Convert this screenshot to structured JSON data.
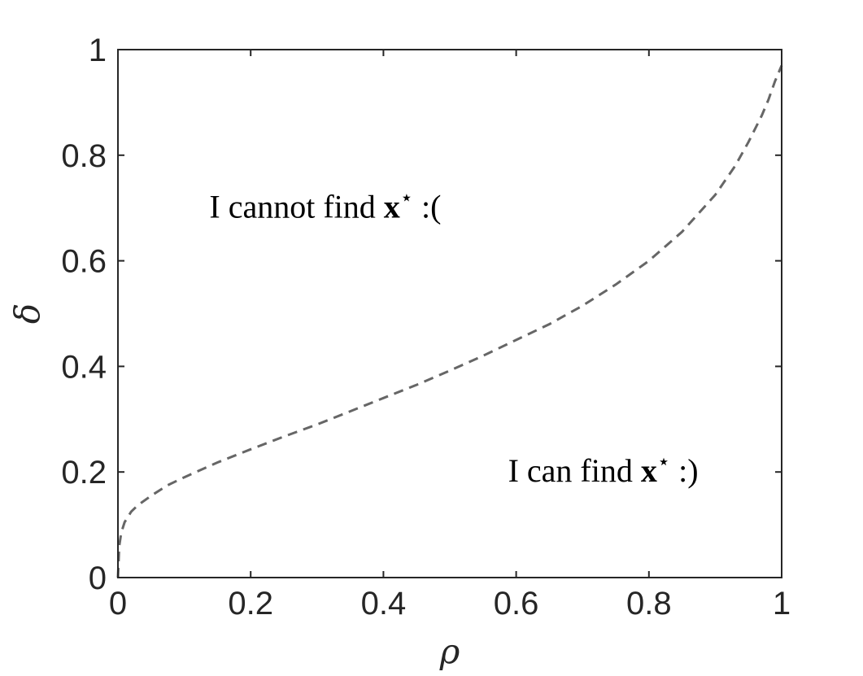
{
  "chart_data": {
    "type": "line",
    "xlabel": "ρ",
    "ylabel": "δ",
    "xlim": [
      0,
      1
    ],
    "ylim": [
      0,
      1
    ],
    "grid": false,
    "box": true,
    "x_ticks": [
      0,
      0.2,
      0.4,
      0.6,
      0.8,
      1
    ],
    "x_tick_labels": [
      "0",
      "0.2",
      "0.4",
      "0.6",
      "0.8",
      "1"
    ],
    "y_ticks": [
      0,
      0.2,
      0.4,
      0.6,
      0.8,
      1
    ],
    "y_tick_labels": [
      "0",
      "0.2",
      "0.4",
      "0.6",
      "0.8",
      "1"
    ],
    "series": [
      {
        "style": "dashed",
        "color": "#666666",
        "x": [
          0,
          0.002,
          0.005,
          0.01,
          0.02,
          0.03,
          0.05,
          0.075,
          0.1,
          0.15,
          0.2,
          0.25,
          0.3,
          0.35,
          0.4,
          0.45,
          0.5,
          0.55,
          0.6,
          0.65,
          0.7,
          0.75,
          0.8,
          0.85,
          0.9,
          0.93,
          0.95,
          0.97,
          0.98,
          0.99,
          1.0
        ],
        "y": [
          0,
          0.06,
          0.085,
          0.105,
          0.125,
          0.137,
          0.155,
          0.175,
          0.19,
          0.218,
          0.243,
          0.267,
          0.29,
          0.315,
          0.34,
          0.365,
          0.392,
          0.42,
          0.45,
          0.48,
          0.515,
          0.555,
          0.6,
          0.655,
          0.725,
          0.78,
          0.825,
          0.875,
          0.905,
          0.94,
          0.97
        ]
      }
    ],
    "annotations": [
      {
        "text_prefix": "I cannot find ",
        "symbol": "x",
        "superscript": "⋆",
        "text_suffix": " :(",
        "x": 0.15,
        "y": 0.7
      },
      {
        "text_prefix": "I can find ",
        "symbol": "x",
        "superscript": "⋆",
        "text_suffix": " :)",
        "x": 0.6,
        "y": 0.2
      }
    ]
  }
}
